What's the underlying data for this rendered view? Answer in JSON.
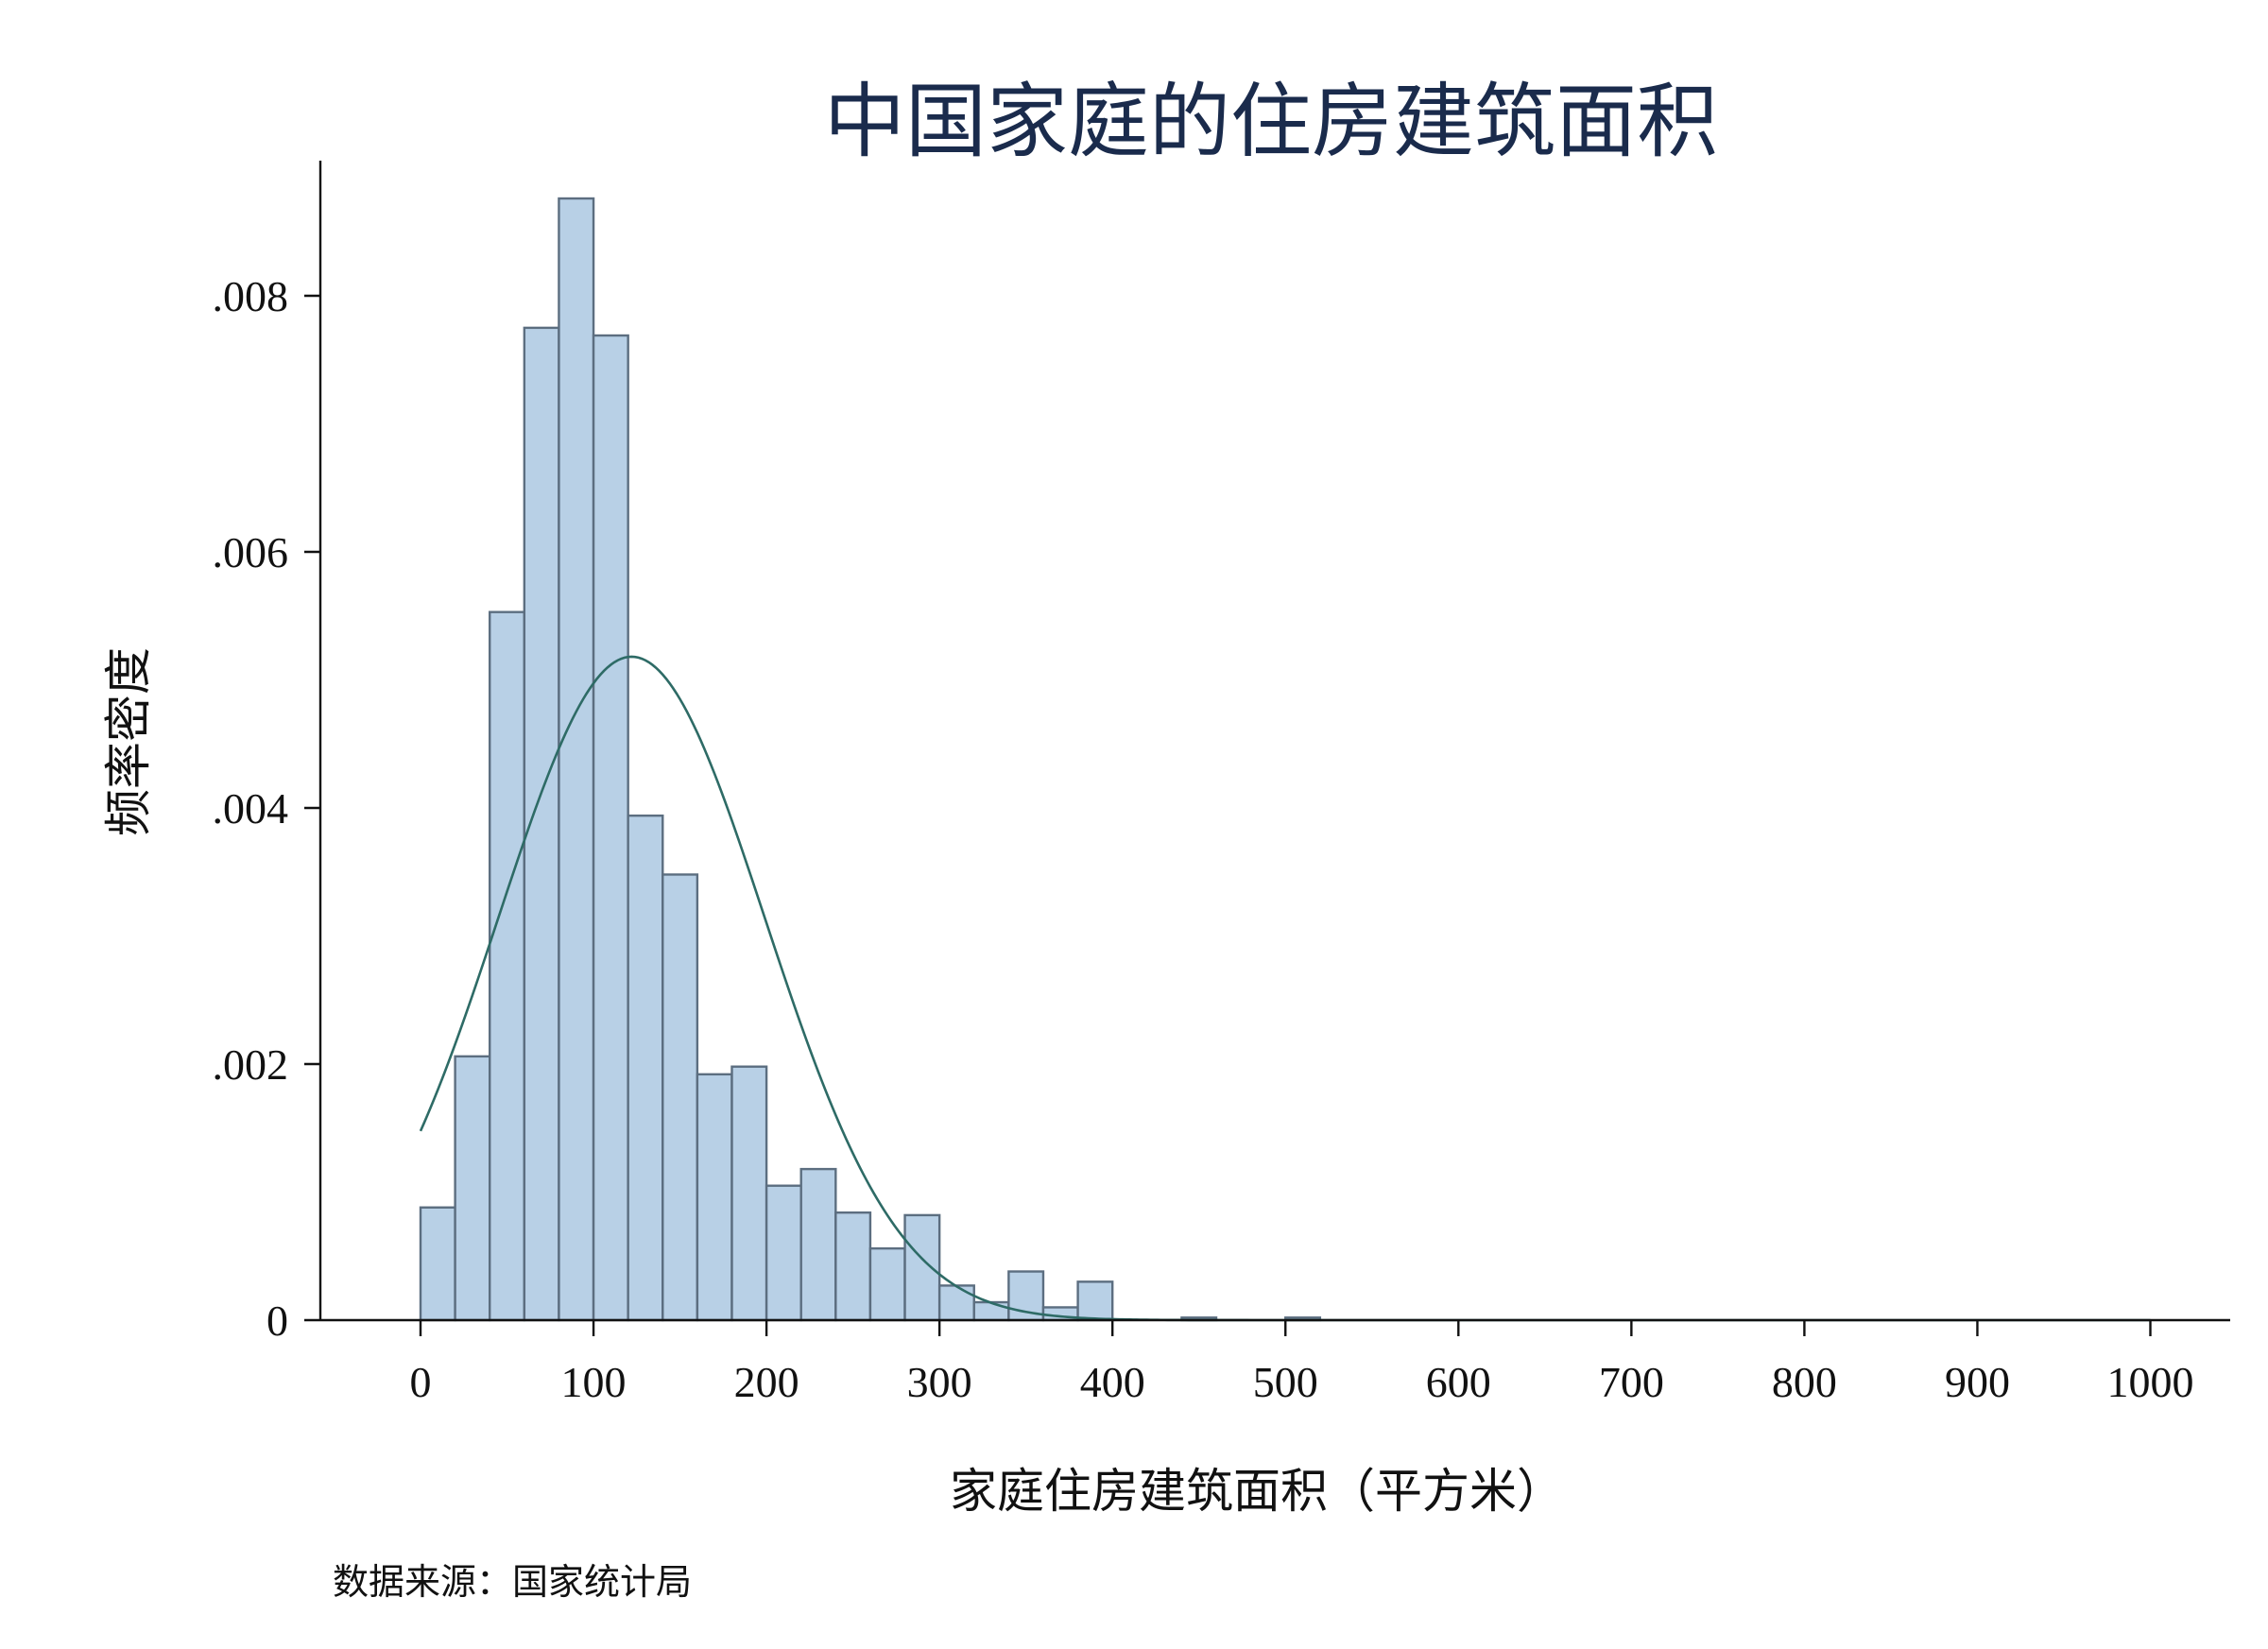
{
  "chart_data": {
    "type": "bar",
    "subtype": "histogram",
    "title": "中国家庭的住房建筑面积",
    "xlabel": "家庭住房建筑面积（平方米）",
    "ylabel": "频率密度",
    "source_note": "数据来源：国家统计局",
    "xlim": [
      -60,
      1050
    ],
    "ylim": [
      0,
      0.0091
    ],
    "x_ticks": [
      0,
      100,
      200,
      300,
      400,
      500,
      600,
      700,
      800,
      900,
      1000
    ],
    "x_tick_labels": [
      "0",
      "100",
      "200",
      "300",
      "400",
      "500",
      "600",
      "700",
      "800",
      "900",
      "1000"
    ],
    "y_ticks": [
      0,
      0.002,
      0.004,
      0.006,
      0.008
    ],
    "y_tick_labels": [
      "0",
      ".002",
      ".004",
      ".006",
      ".008"
    ],
    "bin_width": 20,
    "bins": [
      {
        "start": 0,
        "value": 0.00088
      },
      {
        "start": 20,
        "value": 0.00206
      },
      {
        "start": 40,
        "value": 0.00553
      },
      {
        "start": 60,
        "value": 0.00775
      },
      {
        "start": 80,
        "value": 0.00876
      },
      {
        "start": 100,
        "value": 0.00769
      },
      {
        "start": 120,
        "value": 0.00394
      },
      {
        "start": 140,
        "value": 0.00348
      },
      {
        "start": 160,
        "value": 0.00192
      },
      {
        "start": 180,
        "value": 0.00198
      },
      {
        "start": 200,
        "value": 0.00105
      },
      {
        "start": 220,
        "value": 0.00118
      },
      {
        "start": 240,
        "value": 0.00084
      },
      {
        "start": 260,
        "value": 0.00056
      },
      {
        "start": 280,
        "value": 0.00082
      },
      {
        "start": 300,
        "value": 0.00027
      },
      {
        "start": 320,
        "value": 0.00014
      },
      {
        "start": 340,
        "value": 0.00038
      },
      {
        "start": 360,
        "value": 0.0001
      },
      {
        "start": 380,
        "value": 0.0003
      },
      {
        "start": 440,
        "value": 2e-05
      },
      {
        "start": 500,
        "value": 2e-05
      }
    ],
    "overlay_curve": {
      "type": "normal-density",
      "mean": 122,
      "sd": 77,
      "x_range": [
        0,
        1000
      ]
    },
    "colors": {
      "bar_fill": "#b8d0e6",
      "bar_edge": "#5c6e80",
      "curve": "#2e6b66",
      "title": "#1a2b4c"
    },
    "grid": false,
    "legend": "none"
  }
}
